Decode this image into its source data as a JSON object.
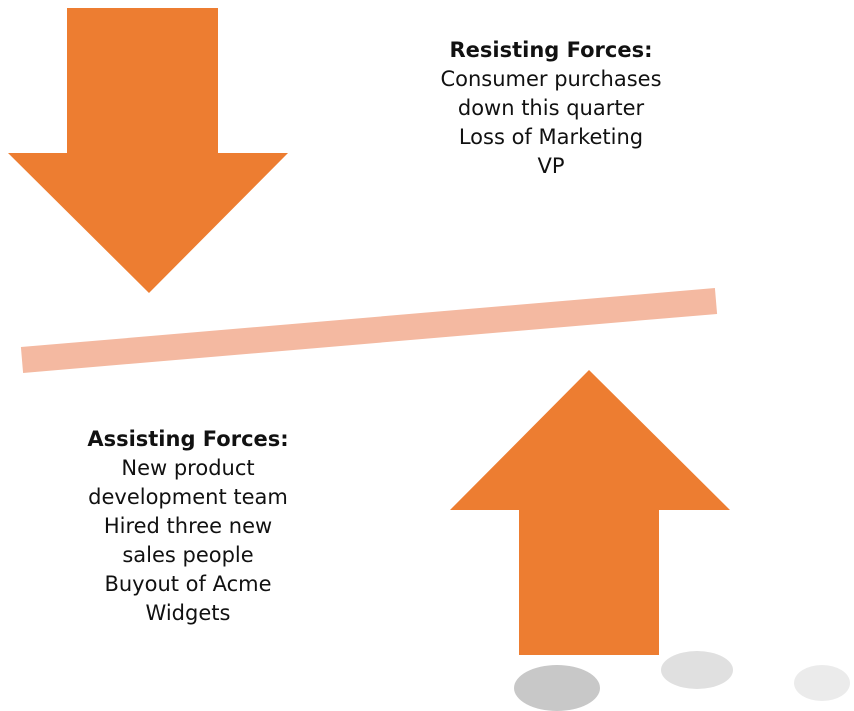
{
  "resisting": {
    "title": "Resisting Forces:",
    "lines": [
      "Consumer purchases",
      "down this quarter",
      "Loss of Marketing",
      "VP"
    ]
  },
  "assisting": {
    "title": "Assisting Forces:",
    "lines": [
      "New product",
      "development team",
      "Hired three new",
      "sales people",
      "Buyout of Acme",
      "Widgets"
    ]
  }
}
